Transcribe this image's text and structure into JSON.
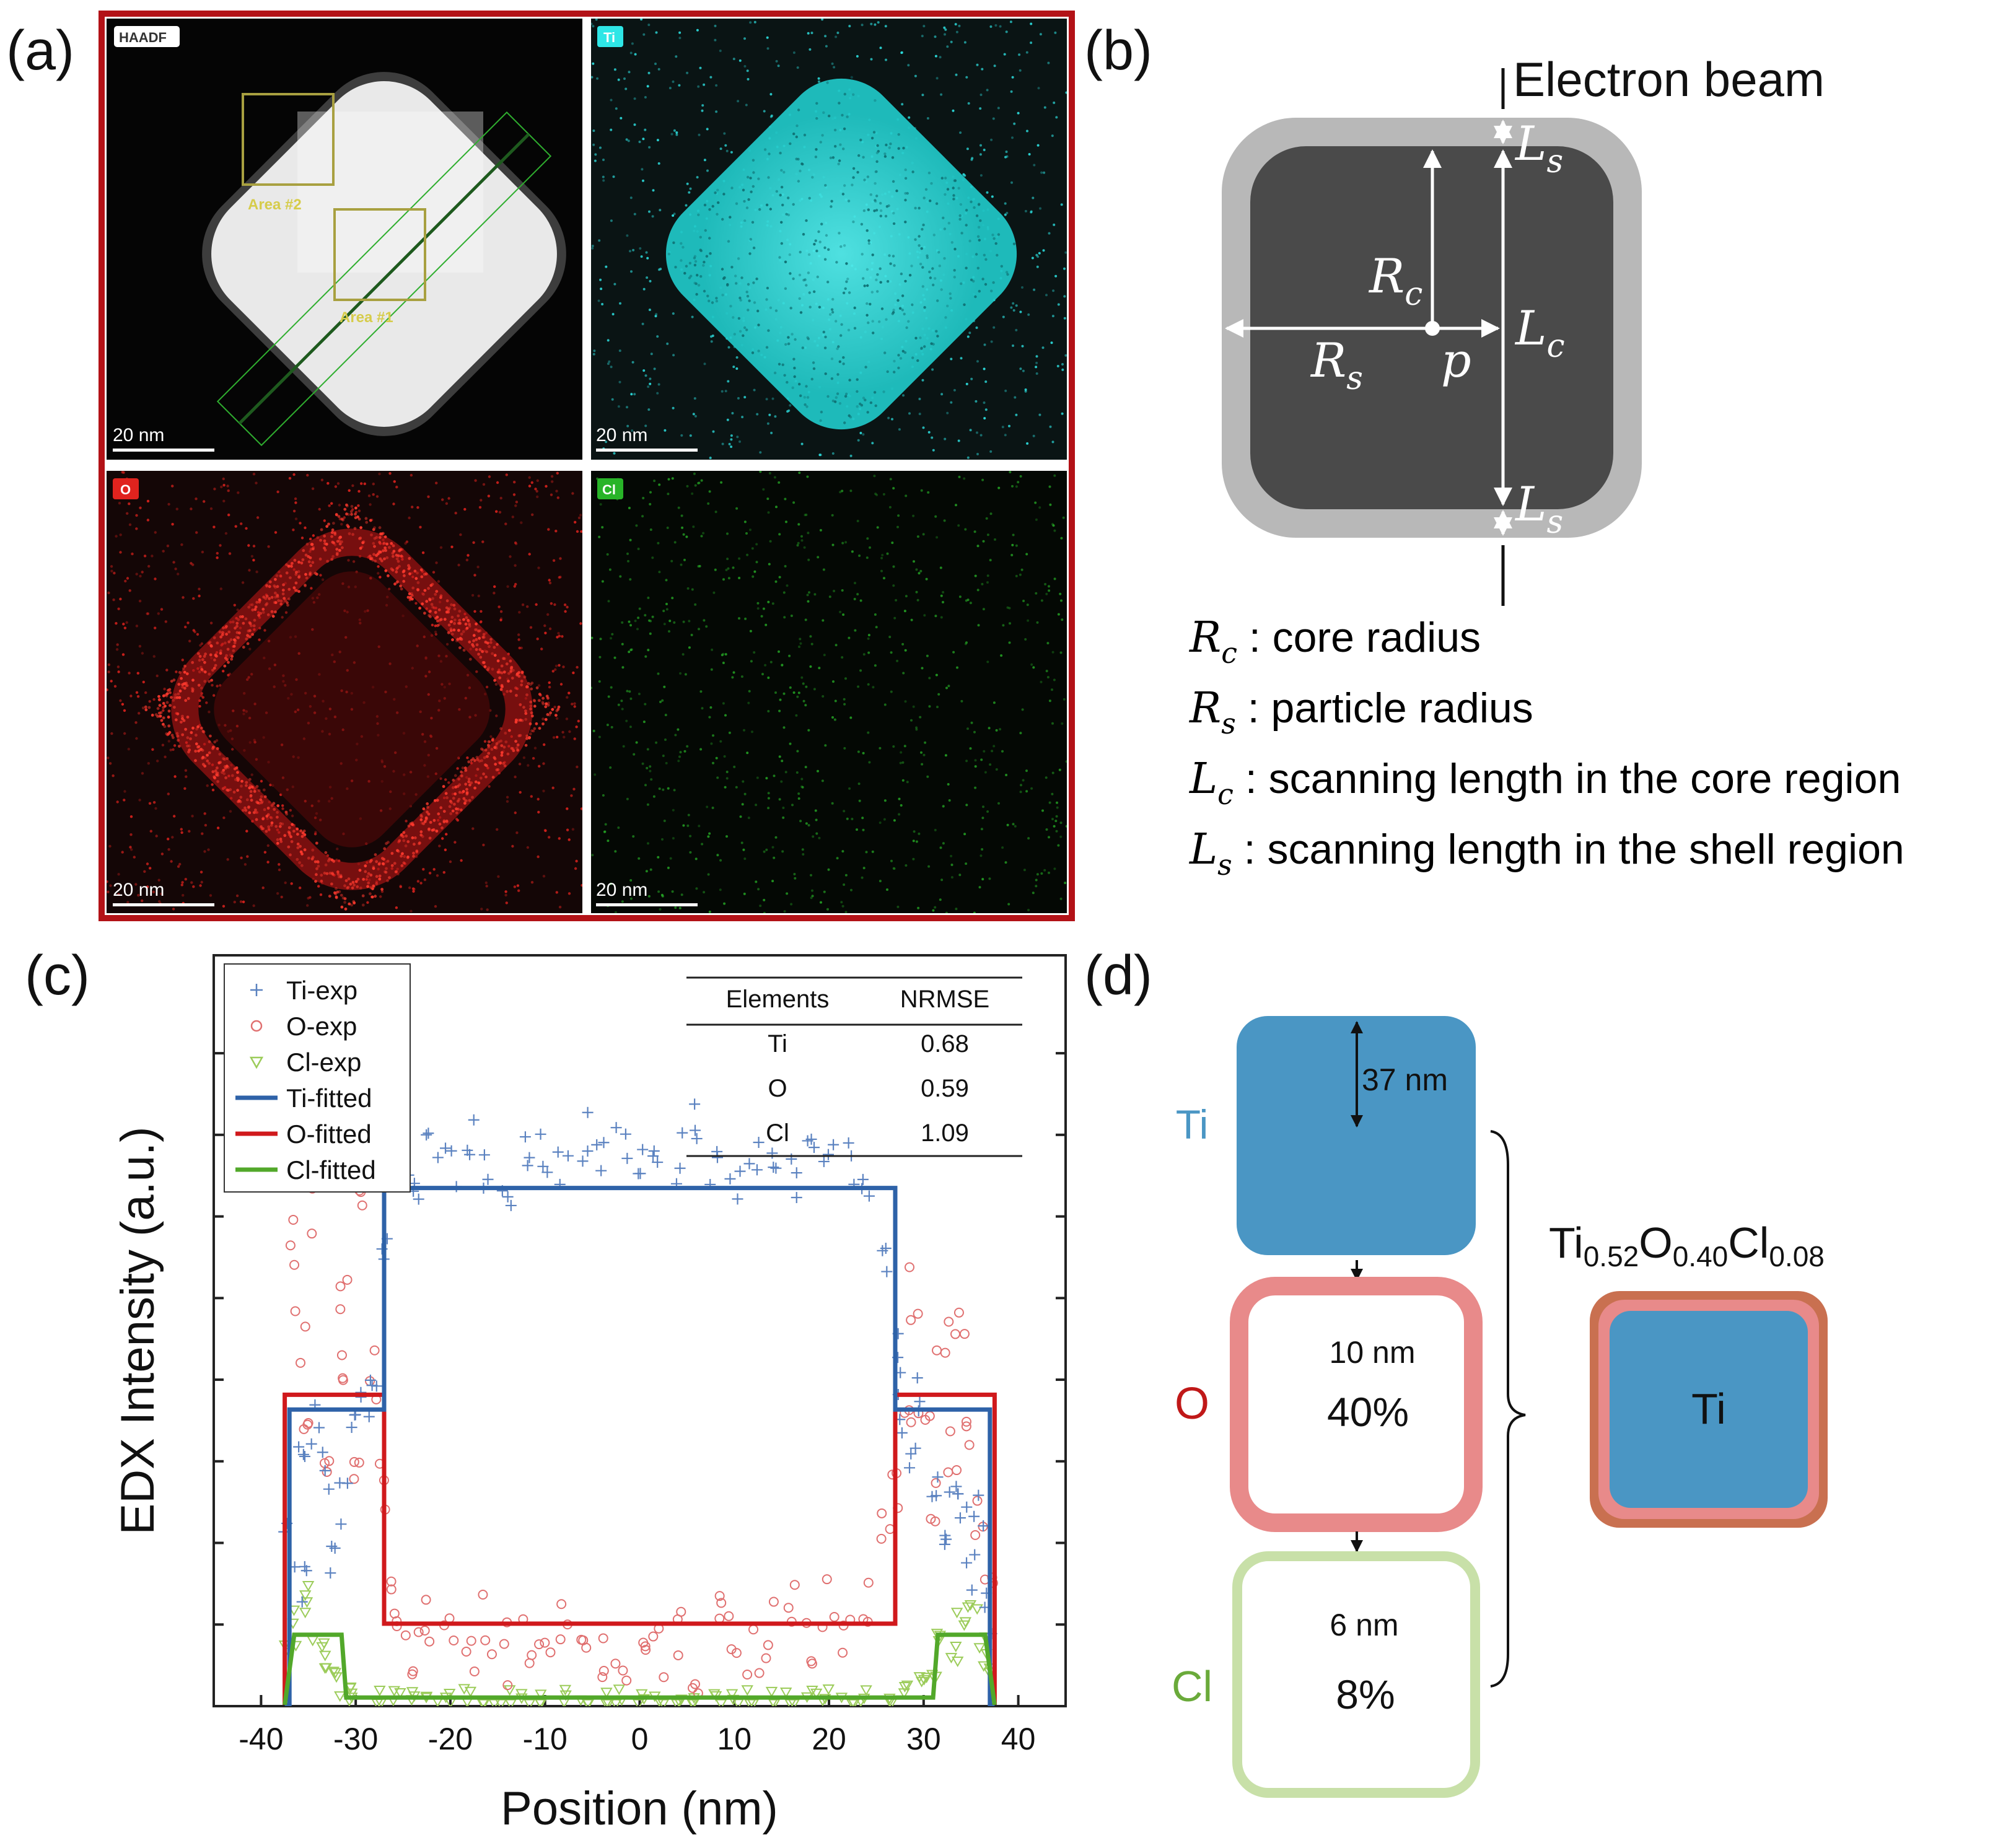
{
  "panels": {
    "a": {
      "label": "(a)",
      "images": [
        {
          "badge": "HAADF",
          "scale": "20 nm",
          "areas": [
            "Area #2",
            "Area #1"
          ]
        },
        {
          "badge": "Ti",
          "scale": "20 nm"
        },
        {
          "badge": "O",
          "scale": "20 nm"
        },
        {
          "badge": "Cl",
          "scale": "20 nm"
        }
      ],
      "colors": {
        "frame": "#b31217",
        "ti": "#2ee6e6",
        "o": "#e0231e",
        "cl": "#28b428",
        "area_box": "#a8a040"
      }
    },
    "b": {
      "label": "(b)",
      "beam_label": "Electron beam",
      "symbols": {
        "rc": "R",
        "rc_sub": "c",
        "rs": "R",
        "rs_sub": "s",
        "lc": "L",
        "lc_sub": "c",
        "ls": "L",
        "ls_sub": "s",
        "p": "p"
      },
      "definitions": [
        {
          "sym": "R",
          "sub": "c",
          "text": " : core radius"
        },
        {
          "sym": "R",
          "sub": "s",
          "text": " : particle radius"
        },
        {
          "sym": "L",
          "sub": "c",
          "text": " : scanning length in the core region"
        },
        {
          "sym": "L",
          "sub": "s",
          "text": " : scanning length in the shell region"
        }
      ],
      "colors": {
        "shell": "#b8b8b8",
        "core": "#4a4a4a"
      }
    },
    "c": {
      "label": "(c)",
      "table": {
        "headers": [
          "Elements",
          "NRMSE"
        ],
        "rows": [
          [
            "Ti",
            "0.68"
          ],
          [
            "O",
            "0.59"
          ],
          [
            "Cl",
            "1.09"
          ]
        ]
      }
    },
    "d": {
      "label": "(d)",
      "ti_label": "Ti",
      "o_label": "O",
      "cl_label": "Cl",
      "ti_size": "37 nm",
      "o_size": "10 nm",
      "o_pct": "40%",
      "cl_size": "6 nm",
      "cl_pct": "8%",
      "formula": [
        {
          "t": "Ti",
          "sub": "0.52"
        },
        {
          "t": "O",
          "sub": "0.40"
        },
        {
          "t": "Cl",
          "sub": "0.08"
        }
      ],
      "composite_label": "Ti",
      "colors": {
        "ti": "#4a96c4",
        "o": "#e88a8a",
        "cl": "#c8e0a8",
        "o_label": "#c01818",
        "cl_label": "#6aaa3a",
        "ti_label": "#4a96c4",
        "outer": "#c97050"
      }
    }
  },
  "chart_data": {
    "type": "scatter",
    "xlabel": "Position (nm)",
    "ylabel": "EDX Intensity (a.u.)",
    "xlim": [
      -45,
      45
    ],
    "ylim": [
      0,
      10
    ],
    "x_ticks": [
      -40,
      -30,
      -20,
      -10,
      0,
      10,
      20,
      30,
      40
    ],
    "y_ticks_labeled": false,
    "legend_position": "top-left",
    "series": [
      {
        "name": "Ti-exp",
        "kind": "points",
        "marker": "+",
        "color": "#5b82c0"
      },
      {
        "name": "O-exp",
        "kind": "points",
        "marker": "o",
        "color": "#e07070"
      },
      {
        "name": "Cl-exp",
        "kind": "points",
        "marker": "v",
        "color": "#9ccc5a"
      },
      {
        "name": "Ti-fitted",
        "kind": "line",
        "color": "#2e62a8",
        "x": [
          -37.5,
          -37,
          -37,
          -27,
          -27,
          27,
          27,
          37,
          37,
          37.5
        ],
        "y": [
          0,
          0,
          4,
          4,
          7,
          7,
          4,
          4,
          0,
          0
        ]
      },
      {
        "name": "O-fitted",
        "kind": "line",
        "color": "#d0191c",
        "x": [
          -37.5,
          -37.5,
          -27,
          -27,
          27,
          27,
          37.5,
          37.5
        ],
        "y": [
          0,
          4.2,
          4.2,
          1.1,
          1.1,
          4.2,
          4.2,
          0
        ]
      },
      {
        "name": "Cl-fitted",
        "kind": "line",
        "color": "#52a82a",
        "x": [
          -37.5,
          -36.5,
          -31.5,
          -31,
          31,
          31.5,
          36.5,
          37.5
        ],
        "y": [
          0,
          0.95,
          0.95,
          0.1,
          0.1,
          0.95,
          0.95,
          0
        ]
      }
    ],
    "exp_profiles": {
      "Ti": {
        "x": [
          -37,
          -36,
          -35,
          -34,
          -33,
          -32,
          -31,
          -30,
          -29,
          -28,
          -27,
          -26,
          -25,
          -24,
          -22,
          -20,
          -18,
          -16,
          -14,
          -12,
          -10,
          -8,
          -6,
          -4,
          -2,
          0,
          2,
          4,
          6,
          8,
          10,
          12,
          14,
          16,
          18,
          20,
          22,
          24,
          26,
          27,
          28,
          29,
          30,
          31,
          32,
          33,
          34,
          35,
          36,
          37
        ],
        "y": [
          2.2,
          3.4,
          1.6,
          3.8,
          3.1,
          1.9,
          2.7,
          3.6,
          3.9,
          4.5,
          6.0,
          7.3,
          7.5,
          7.1,
          7.4,
          7.2,
          7.6,
          7.3,
          7.0,
          7.5,
          7.4,
          7.2,
          7.7,
          7.3,
          7.6,
          7.5,
          7.2,
          7.4,
          7.8,
          7.3,
          7.1,
          7.5,
          7.6,
          7.2,
          7.4,
          7.7,
          7.3,
          7.2,
          6.0,
          4.8,
          3.9,
          3.5,
          4.1,
          3.0,
          2.4,
          3.2,
          2.8,
          1.9,
          2.5,
          1.2
        ]
      },
      "O": {
        "x": [
          -37,
          -36,
          -35,
          -34,
          -33,
          -32,
          -31,
          -30,
          -29,
          -28,
          -27,
          -26,
          -25,
          -24,
          -22,
          -20,
          -18,
          -16,
          -14,
          -12,
          -10,
          -8,
          -6,
          -4,
          -2,
          0,
          2,
          4,
          6,
          8,
          10,
          12,
          14,
          16,
          18,
          20,
          22,
          24,
          26,
          27,
          28,
          29,
          30,
          31,
          32,
          33,
          34,
          35,
          36,
          37
        ],
        "y": [
          6.3,
          5.0,
          3.5,
          6.8,
          2.9,
          4.7,
          5.6,
          3.2,
          7.1,
          4.4,
          3.0,
          1.3,
          1.0,
          0.8,
          1.2,
          0.9,
          0.6,
          1.1,
          0.7,
          0.9,
          0.5,
          1.0,
          0.7,
          0.8,
          0.6,
          1.0,
          0.7,
          0.9,
          0.6,
          1.1,
          0.8,
          0.7,
          1.0,
          1.2,
          0.9,
          1.3,
          1.1,
          1.5,
          2.2,
          3.0,
          3.6,
          5.6,
          4.2,
          2.6,
          4.8,
          3.4,
          5.2,
          3.9,
          2.6,
          1.4
        ]
      },
      "Cl": {
        "x": [
          -37,
          -36,
          -35,
          -34,
          -33,
          -32,
          -31,
          -30,
          -28,
          -26,
          -24,
          -22,
          -20,
          -18,
          -16,
          -14,
          -12,
          -10,
          -8,
          -6,
          -4,
          -2,
          0,
          2,
          4,
          6,
          8,
          10,
          12,
          14,
          16,
          18,
          20,
          22,
          24,
          26,
          28,
          30,
          31,
          32,
          33,
          34,
          35,
          36,
          37
        ],
        "y": [
          0.8,
          1.2,
          1.5,
          0.9,
          0.6,
          0.4,
          0.2,
          0.15,
          0.1,
          0.12,
          0.08,
          0.1,
          0.05,
          0.12,
          0.06,
          0.1,
          0.04,
          0.08,
          0.1,
          0.05,
          0.07,
          0.1,
          0.06,
          0.09,
          0.05,
          0.1,
          0.07,
          0.04,
          0.1,
          0.08,
          0.06,
          0.1,
          0.12,
          0.08,
          0.1,
          0.15,
          0.2,
          0.3,
          0.5,
          0.9,
          0.7,
          1.2,
          1.4,
          0.8,
          0.5
        ]
      }
    }
  }
}
